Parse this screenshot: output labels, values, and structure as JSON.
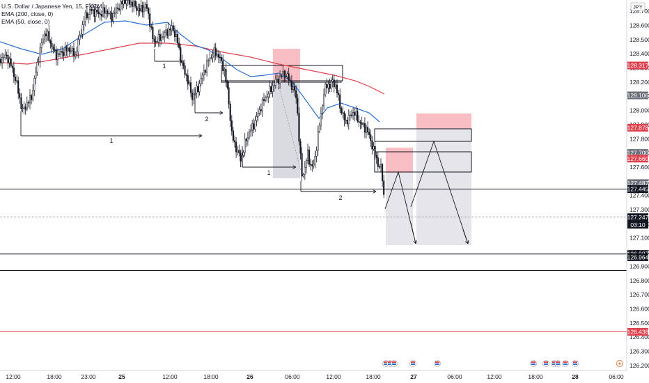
{
  "legend": {
    "symbol": "U.S. Dollar / Japanese Yen, 15, FXCM",
    "ema200": "EMA (200, close, 0)",
    "ema50": "EMA (50, close, 0)"
  },
  "currency_badge": "JPY",
  "colors": {
    "background": "#ffffff",
    "candle": "#131722",
    "ema200": "#e0414d",
    "ema50": "#2a6fd6",
    "zone_red": "#f7b7bd",
    "zone_gray": "#d8d9de",
    "label_red": "#e0414d",
    "label_gray": "#6b6f78",
    "label_dark": "#131722"
  },
  "chart_data": {
    "type": "candlestick",
    "title": "U.S. Dollar / Japanese Yen, 15, FXCM",
    "x_ticks": [
      "12:00",
      "18:00",
      "23:00",
      "25",
      "12:00",
      "18:00",
      "26",
      "06:00",
      "12:00",
      "18:00",
      "27",
      "06:00",
      "12:00",
      "18:00",
      "28",
      "06:00"
    ],
    "y_ticks": [
      128.7,
      128.6,
      128.5,
      128.4,
      128.3,
      128.2,
      128.1,
      128.0,
      127.9,
      127.8,
      127.7,
      127.6,
      127.5,
      127.4,
      127.3,
      127.2,
      127.1,
      127.0,
      126.9,
      126.8,
      126.7,
      126.6,
      126.5,
      126.4,
      126.3,
      126.2
    ],
    "ylim": [
      126.165,
      128.73
    ],
    "grid": false,
    "price_labels": [
      {
        "value": 128.317,
        "text": "128.317",
        "style": "red"
      },
      {
        "value": 128.106,
        "text": "128.106",
        "style": "gray"
      },
      {
        "value": 127.878,
        "text": "127.878",
        "style": "red"
      },
      {
        "value": 127.7,
        "text": "127.700",
        "style": "gray"
      },
      {
        "value": 127.66,
        "text": "127.660",
        "style": "red"
      },
      {
        "value": 127.487,
        "text": "127.487",
        "style": "gray"
      },
      {
        "value": 127.446,
        "text": "127.446",
        "style": "gray"
      },
      {
        "value": 127.445,
        "text": "127.445",
        "style": "dark"
      },
      {
        "value": 127.247,
        "text": "127.247",
        "sub": "03:10",
        "style": "dark"
      },
      {
        "value": 126.987,
        "text": "126.987",
        "style": "dark"
      },
      {
        "value": 126.964,
        "text": "126.964",
        "style": "dark"
      },
      {
        "value": 126.438,
        "text": "126.438",
        "style": "red"
      }
    ],
    "horizontal_lines": [
      {
        "value": 127.445,
        "color": "dark"
      },
      {
        "value": 127.247,
        "color": "gray"
      },
      {
        "value": 126.987,
        "color": "dark"
      },
      {
        "value": 126.87,
        "color": "dark"
      },
      {
        "value": 126.438,
        "color": "red"
      }
    ],
    "annotations": [
      "1",
      "2",
      "1",
      "1",
      "2"
    ]
  }
}
